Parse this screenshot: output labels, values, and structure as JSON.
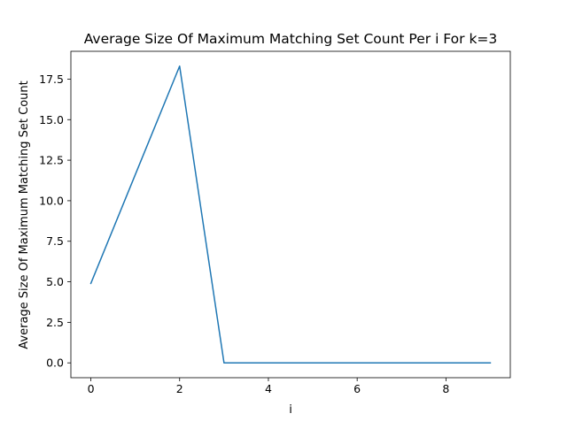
{
  "chart_data": {
    "type": "line",
    "title": "Average Size Of Maximum Matching Set Count Per i For k=3",
    "xlabel": "i",
    "ylabel": "Average Size Of Maximum Matching Set Count",
    "x": [
      0,
      1,
      2,
      3,
      4,
      5,
      6,
      7,
      8,
      9
    ],
    "series": [
      {
        "values": [
          4.9,
          11.6,
          18.3,
          0.0,
          0.0,
          0.0,
          0.0,
          0.0,
          0.0,
          0.0
        ],
        "color": "#1f77b4"
      }
    ],
    "xlim": [
      -0.45,
      9.45
    ],
    "ylim": [
      -0.915,
      19.215
    ],
    "xticks": [
      0,
      2,
      4,
      6,
      8
    ],
    "yticks": [
      0.0,
      2.5,
      5.0,
      7.5,
      10.0,
      12.5,
      15.0,
      17.5
    ],
    "xtick_labels": [
      "0",
      "2",
      "4",
      "6",
      "8"
    ],
    "ytick_labels": [
      "0.0",
      "2.5",
      "5.0",
      "7.5",
      "10.0",
      "12.5",
      "15.0",
      "17.5"
    ],
    "grid": false,
    "legend": "none"
  }
}
